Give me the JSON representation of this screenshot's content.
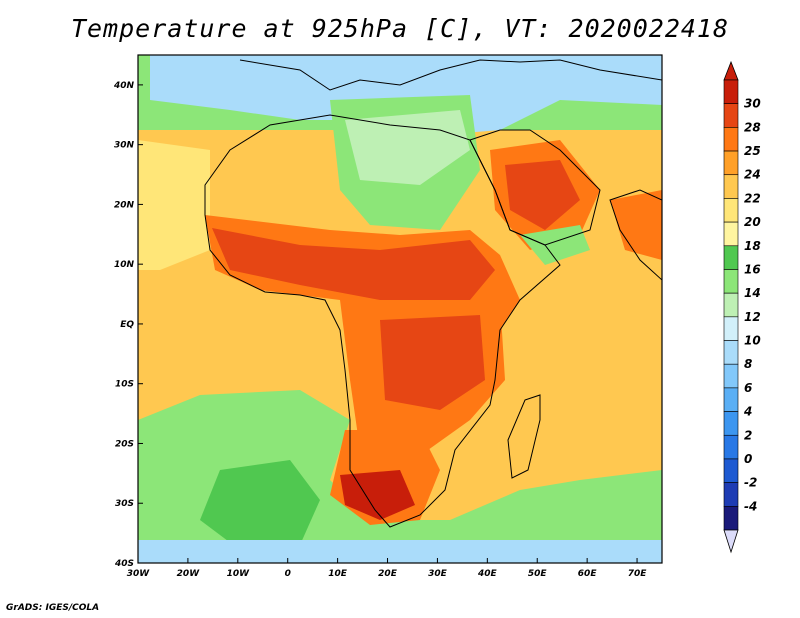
{
  "title": "Temperature at 925hPa [C], VT: 2020022418",
  "credit": "GrADS: IGES/COLA",
  "map": {
    "lon_range": [
      -30,
      75
    ],
    "lat_range": [
      -40,
      45
    ],
    "lat_ticks": [
      {
        "value": 40,
        "label": "40N"
      },
      {
        "value": 30,
        "label": "30N"
      },
      {
        "value": 20,
        "label": "20N"
      },
      {
        "value": 10,
        "label": "10N"
      },
      {
        "value": 0,
        "label": "EQ"
      },
      {
        "value": -10,
        "label": "10S"
      },
      {
        "value": -20,
        "label": "20S"
      },
      {
        "value": -30,
        "label": "30S"
      },
      {
        "value": -40,
        "label": "40S"
      }
    ],
    "lon_ticks": [
      {
        "value": -30,
        "label": "30W"
      },
      {
        "value": -20,
        "label": "20W"
      },
      {
        "value": -10,
        "label": "10W"
      },
      {
        "value": 0,
        "label": "0"
      },
      {
        "value": 10,
        "label": "10E"
      },
      {
        "value": 20,
        "label": "20E"
      },
      {
        "value": 30,
        "label": "30E"
      },
      {
        "value": 40,
        "label": "40E"
      },
      {
        "value": 50,
        "label": "50E"
      },
      {
        "value": 60,
        "label": "60E"
      },
      {
        "value": 70,
        "label": "70E"
      }
    ]
  },
  "colorbar": {
    "levels": [
      "-4",
      "-2",
      "0",
      "2",
      "4",
      "6",
      "8",
      "10",
      "12",
      "14",
      "16",
      "18",
      "20",
      "22",
      "24",
      "25",
      "28",
      "30"
    ],
    "colors": [
      "#1a1a7a",
      "#1e3cb4",
      "#1e5ad2",
      "#2878e6",
      "#3c96f0",
      "#5aaff5",
      "#82c8fa",
      "#aadcfa",
      "#d2f0fa",
      "#bef0b4",
      "#8ce678",
      "#50c850",
      "#fff5a0",
      "#ffe678",
      "#ffc850",
      "#ffa028",
      "#ff7814",
      "#e64614",
      "#c81e0a"
    ],
    "under_color": "#dcdcfa",
    "over_color": "#c81e0a"
  }
}
